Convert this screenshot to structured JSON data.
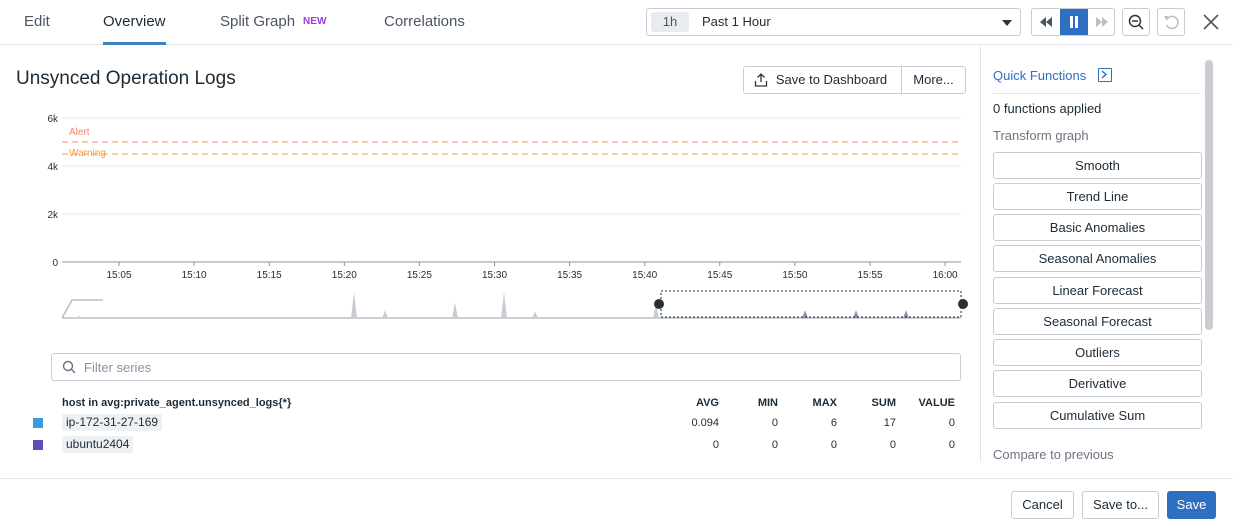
{
  "tabs": [
    {
      "label": "Edit"
    },
    {
      "label": "Overview"
    },
    {
      "label": "Split Graph",
      "badge": "NEW"
    },
    {
      "label": "Correlations"
    }
  ],
  "time": {
    "chip": "1h",
    "label": "Past 1 Hour"
  },
  "graph": {
    "title": "Unsynced Operation Logs",
    "save_dashboard_label": "Save to Dashboard",
    "more_label": "More..."
  },
  "chart_data": {
    "type": "line",
    "ylim": [
      0,
      6000
    ],
    "yticks": [
      "6k",
      "4k",
      "2k",
      "0"
    ],
    "xticks": [
      "15:05",
      "15:10",
      "15:15",
      "15:20",
      "15:25",
      "15:30",
      "15:35",
      "15:40",
      "15:45",
      "15:50",
      "15:55",
      "16:00"
    ],
    "markers": [
      {
        "label": "Alert",
        "value": 5000,
        "color": "#f08470"
      },
      {
        "label": "Warning",
        "value": 4500,
        "color": "#f0a040"
      }
    ],
    "series": [
      {
        "name": "ip-172-31-27-169",
        "color": "#3a9be0"
      },
      {
        "name": "ubuntu2404",
        "color": "#5d4fb8"
      }
    ],
    "overview_spikes": [
      0.08,
      1.0,
      0.3,
      0.6,
      1.0,
      0.25,
      0.5,
      0.3,
      0.3,
      0.3
    ]
  },
  "filter": {
    "placeholder": "Filter series"
  },
  "table": {
    "header": "host in avg:private_agent.unsynced_logs{*}",
    "columns": [
      "AVG",
      "MIN",
      "MAX",
      "SUM",
      "VALUE"
    ],
    "rows": [
      {
        "host": "ip-172-31-27-169",
        "color": "#3a9be0",
        "values": [
          "0.094",
          "0",
          "6",
          "17",
          "0"
        ]
      },
      {
        "host": "ubuntu2404",
        "color": "#5d4fb8",
        "values": [
          "0",
          "0",
          "0",
          "0",
          "0"
        ]
      }
    ]
  },
  "panel": {
    "title": "Quick Functions",
    "applied": "0 functions applied",
    "transform": "Transform graph",
    "functions": [
      "Smooth",
      "Trend Line",
      "Basic Anomalies",
      "Seasonal Anomalies",
      "Linear Forecast",
      "Seasonal Forecast",
      "Outliers",
      "Derivative",
      "Cumulative Sum"
    ],
    "compare": "Compare to previous"
  },
  "footer": {
    "cancel": "Cancel",
    "save_to": "Save to...",
    "save": "Save"
  }
}
